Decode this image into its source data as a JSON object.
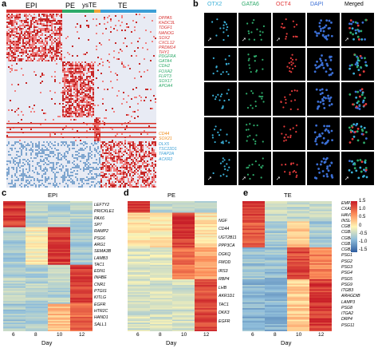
{
  "panel_a": {
    "letter": "a",
    "lineages": [
      "EPI",
      "PE",
      "ysTE",
      "TE"
    ],
    "genes_red": [
      "DPPA5",
      "KHDC3L",
      "TDGF1",
      "NANOG",
      "SOX2",
      "CXCL12",
      "PRDM14",
      "THY1"
    ],
    "genes_green": [
      "PDGFRA",
      "GATA4",
      "CDH2",
      "FOXA2",
      "FLRT3",
      "SOX17",
      "APOA4"
    ],
    "genes_orange": [
      "CD44",
      "SOX21"
    ],
    "genes_blue": [
      "DLX5",
      "TSC22D1",
      "TFAP2A",
      "ACKR2"
    ],
    "colors": {
      "epi": "#d7302f",
      "pe": "#2eaa6a",
      "yste": "#f2a33a",
      "te": "#3b9fd6"
    }
  },
  "panel_b": {
    "letter": "b",
    "channels": [
      "OTX2",
      "GATA6",
      "OCT4",
      "DAPI",
      "Merged"
    ],
    "channel_colors": [
      "#3ab0d8",
      "#2eaa6a",
      "#e23b3b",
      "#3b6fd6",
      "#000000"
    ]
  },
  "panel_c": {
    "letter": "c",
    "title": "EPI",
    "days": [
      "6",
      "8",
      "10",
      "12"
    ],
    "xlabel": "Day",
    "genes": [
      "LEFTY2",
      "PRICKLE1",
      "PAX6",
      "SP7",
      "RAMP2",
      "PSG6",
      "ARG1",
      "SEMA3B",
      "LAMB3",
      "TAC1",
      "EDN1",
      "INHBE",
      "CNR1",
      "PTGIS",
      "KITLG",
      "EGFR",
      "HTR2C",
      "HAND1",
      "SALL1"
    ]
  },
  "panel_d": {
    "letter": "d",
    "title": "PE",
    "days": [
      "6",
      "8",
      "10",
      "12"
    ],
    "xlabel": "Day",
    "genes": [
      "NGF",
      "CD44",
      "UGT2B11",
      "PPP3CA",
      "DGKQ",
      "FMOD",
      "IRS3",
      "RBP4",
      "LHB",
      "AKR1D1",
      "TAC1",
      "DKK3",
      "EGFR"
    ]
  },
  "panel_e": {
    "letter": "e",
    "title": "TE",
    "days": [
      "6",
      "8",
      "10",
      "12"
    ],
    "xlabel": "Day",
    "genes": [
      "EMP2",
      "CXADR",
      "HAVCR1",
      "INSL4",
      "CGB7",
      "CGB5",
      "CGB8",
      "CGB1",
      "CGB2",
      "PSG1",
      "PSG2",
      "PSG3",
      "PSG4",
      "PSG5",
      "PSG9",
      "ITGB3",
      "ARHGDIB",
      "LAMP3",
      "PSG8",
      "ITGA2",
      "DRP4",
      "PSG11"
    ],
    "colorbar_ticks": [
      "1.5",
      "1.0",
      "0.5",
      "0",
      "-0.5",
      "-1.0",
      "-1.5"
    ]
  }
}
